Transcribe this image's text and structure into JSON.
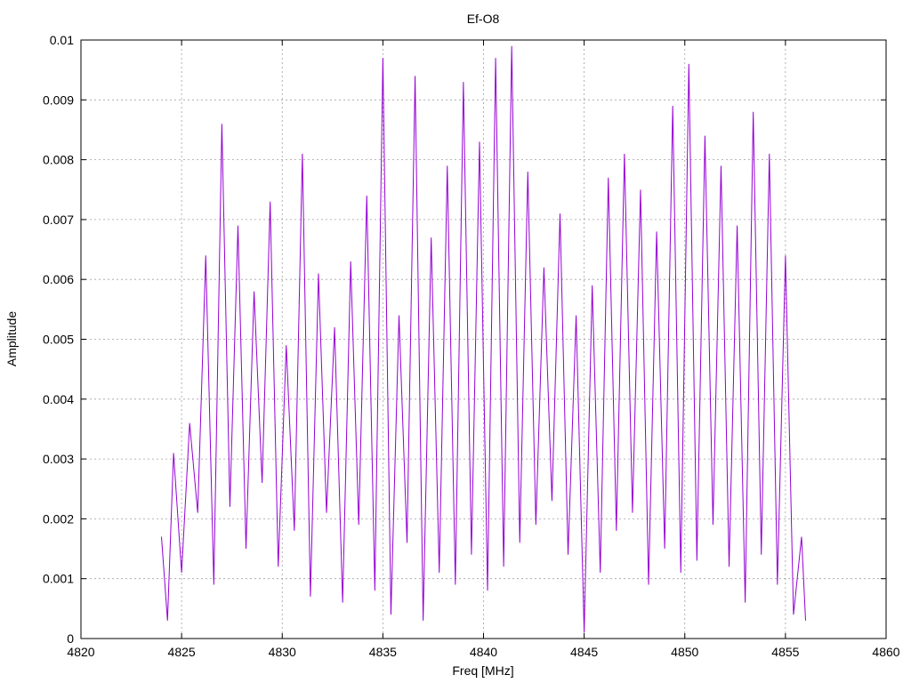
{
  "chart_data": {
    "type": "line",
    "title": "Ef-O8",
    "xlabel": "Freq [MHz]",
    "ylabel": "Amplitude",
    "xlim": [
      4820,
      4860
    ],
    "ylim": [
      0,
      0.01
    ],
    "x_ticks": [
      "4820",
      "4825",
      "4830",
      "4835",
      "4840",
      "4845",
      "4850",
      "4855",
      "4860"
    ],
    "y_ticks": [
      "0",
      "0.001",
      "0.002",
      "0.003",
      "0.004",
      "0.005",
      "0.006",
      "0.007",
      "0.008",
      "0.009",
      "0.01"
    ],
    "grid": true,
    "legend": "none",
    "series": [
      {
        "color": "#9400d3",
        "x": [
          4824.0,
          4824.3,
          4824.6,
          4825.0,
          4825.4,
          4825.8,
          4826.2,
          4826.6,
          4827.0,
          4827.4,
          4827.8,
          4828.2,
          4828.6,
          4829.0,
          4829.4,
          4829.8,
          4830.2,
          4830.6,
          4831.0,
          4831.4,
          4831.8,
          4832.2,
          4832.6,
          4833.0,
          4833.4,
          4833.8,
          4834.2,
          4834.6,
          4835.0,
          4835.4,
          4835.8,
          4836.2,
          4836.6,
          4837.0,
          4837.4,
          4837.8,
          4838.2,
          4838.6,
          4839.0,
          4839.4,
          4839.8,
          4840.2,
          4840.6,
          4841.0,
          4841.4,
          4841.8,
          4842.2,
          4842.6,
          4843.0,
          4843.4,
          4843.8,
          4844.2,
          4844.6,
          4845.0,
          4845.4,
          4845.8,
          4846.2,
          4846.6,
          4847.0,
          4847.4,
          4847.8,
          4848.2,
          4848.6,
          4849.0,
          4849.4,
          4849.8,
          4850.2,
          4850.6,
          4851.0,
          4851.4,
          4851.8,
          4852.2,
          4852.6,
          4853.0,
          4853.4,
          4853.8,
          4854.2,
          4854.6,
          4855.0,
          4855.4,
          4855.8,
          4856.0
        ],
        "y": [
          0.0017,
          0.0003,
          0.0031,
          0.0011,
          0.0036,
          0.0021,
          0.0064,
          0.0009,
          0.0086,
          0.0022,
          0.0069,
          0.0015,
          0.0058,
          0.0026,
          0.0073,
          0.0012,
          0.0049,
          0.0018,
          0.0081,
          0.0007,
          0.0061,
          0.0021,
          0.0052,
          0.0006,
          0.0063,
          0.0019,
          0.0074,
          0.0008,
          0.0097,
          0.0004,
          0.0054,
          0.0016,
          0.0094,
          0.0003,
          0.0067,
          0.0011,
          0.0079,
          0.0009,
          0.0093,
          0.0014,
          0.0083,
          0.0008,
          0.0097,
          0.0012,
          0.0099,
          0.0016,
          0.0078,
          0.0019,
          0.0062,
          0.0023,
          0.0071,
          0.0014,
          0.0054,
          0.0001,
          0.0059,
          0.0011,
          0.0077,
          0.0018,
          0.0081,
          0.0021,
          0.0075,
          0.0009,
          0.0068,
          0.0015,
          0.0089,
          0.0011,
          0.0096,
          0.0013,
          0.0084,
          0.0019,
          0.0079,
          0.0012,
          0.0069,
          0.0006,
          0.0088,
          0.0014,
          0.0081,
          0.0009,
          0.0064,
          0.0004,
          0.0017,
          0.0003
        ]
      }
    ]
  }
}
